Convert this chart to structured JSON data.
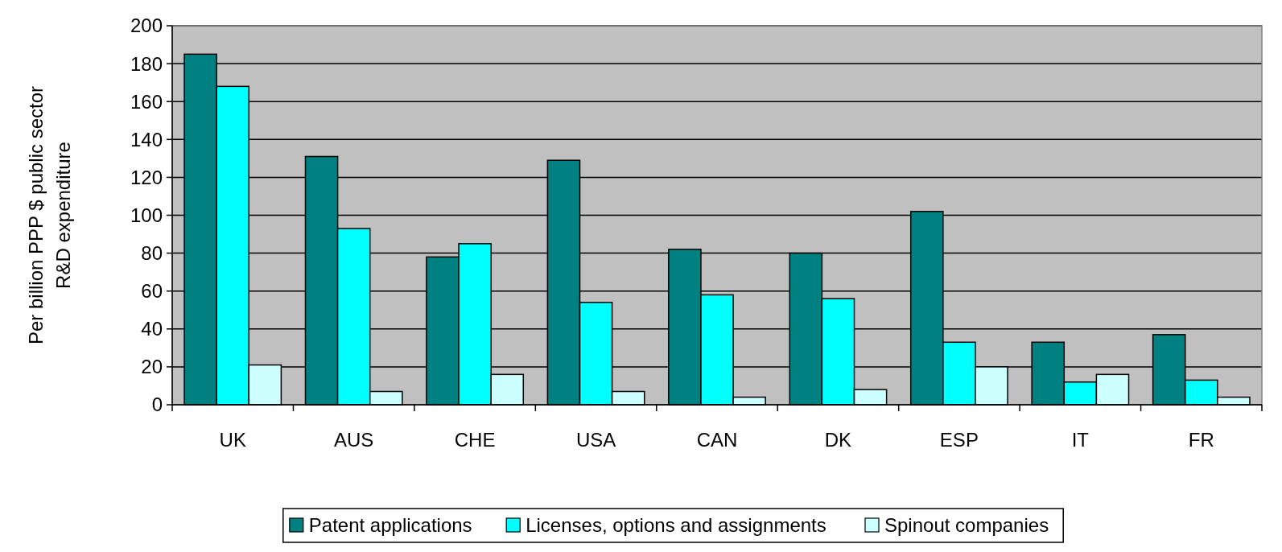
{
  "chart_data": {
    "type": "bar",
    "ylabel": "Per billion PPP $ public sector\nR&D expenditure",
    "categories": [
      "UK",
      "AUS",
      "CHE",
      "USA",
      "CAN",
      "DK",
      "ESP",
      "IT",
      "FR"
    ],
    "series": [
      {
        "name": "Patent applications",
        "color": "#008080",
        "values": [
          185,
          131,
          78,
          129,
          82,
          80,
          102,
          33,
          37
        ]
      },
      {
        "name": "Licenses, options and assignments",
        "color": "#00ffff",
        "values": [
          168,
          93,
          85,
          54,
          58,
          56,
          33,
          12,
          13
        ]
      },
      {
        "name": "Spinout companies",
        "color": "#ccffff",
        "values": [
          21,
          7,
          16,
          7,
          4,
          8,
          20,
          16,
          4
        ]
      }
    ],
    "ylim": [
      0,
      200
    ],
    "yticks": [
      0,
      20,
      40,
      60,
      80,
      100,
      120,
      140,
      160,
      180,
      200
    ],
    "grid": "y",
    "legend": "bottom"
  }
}
